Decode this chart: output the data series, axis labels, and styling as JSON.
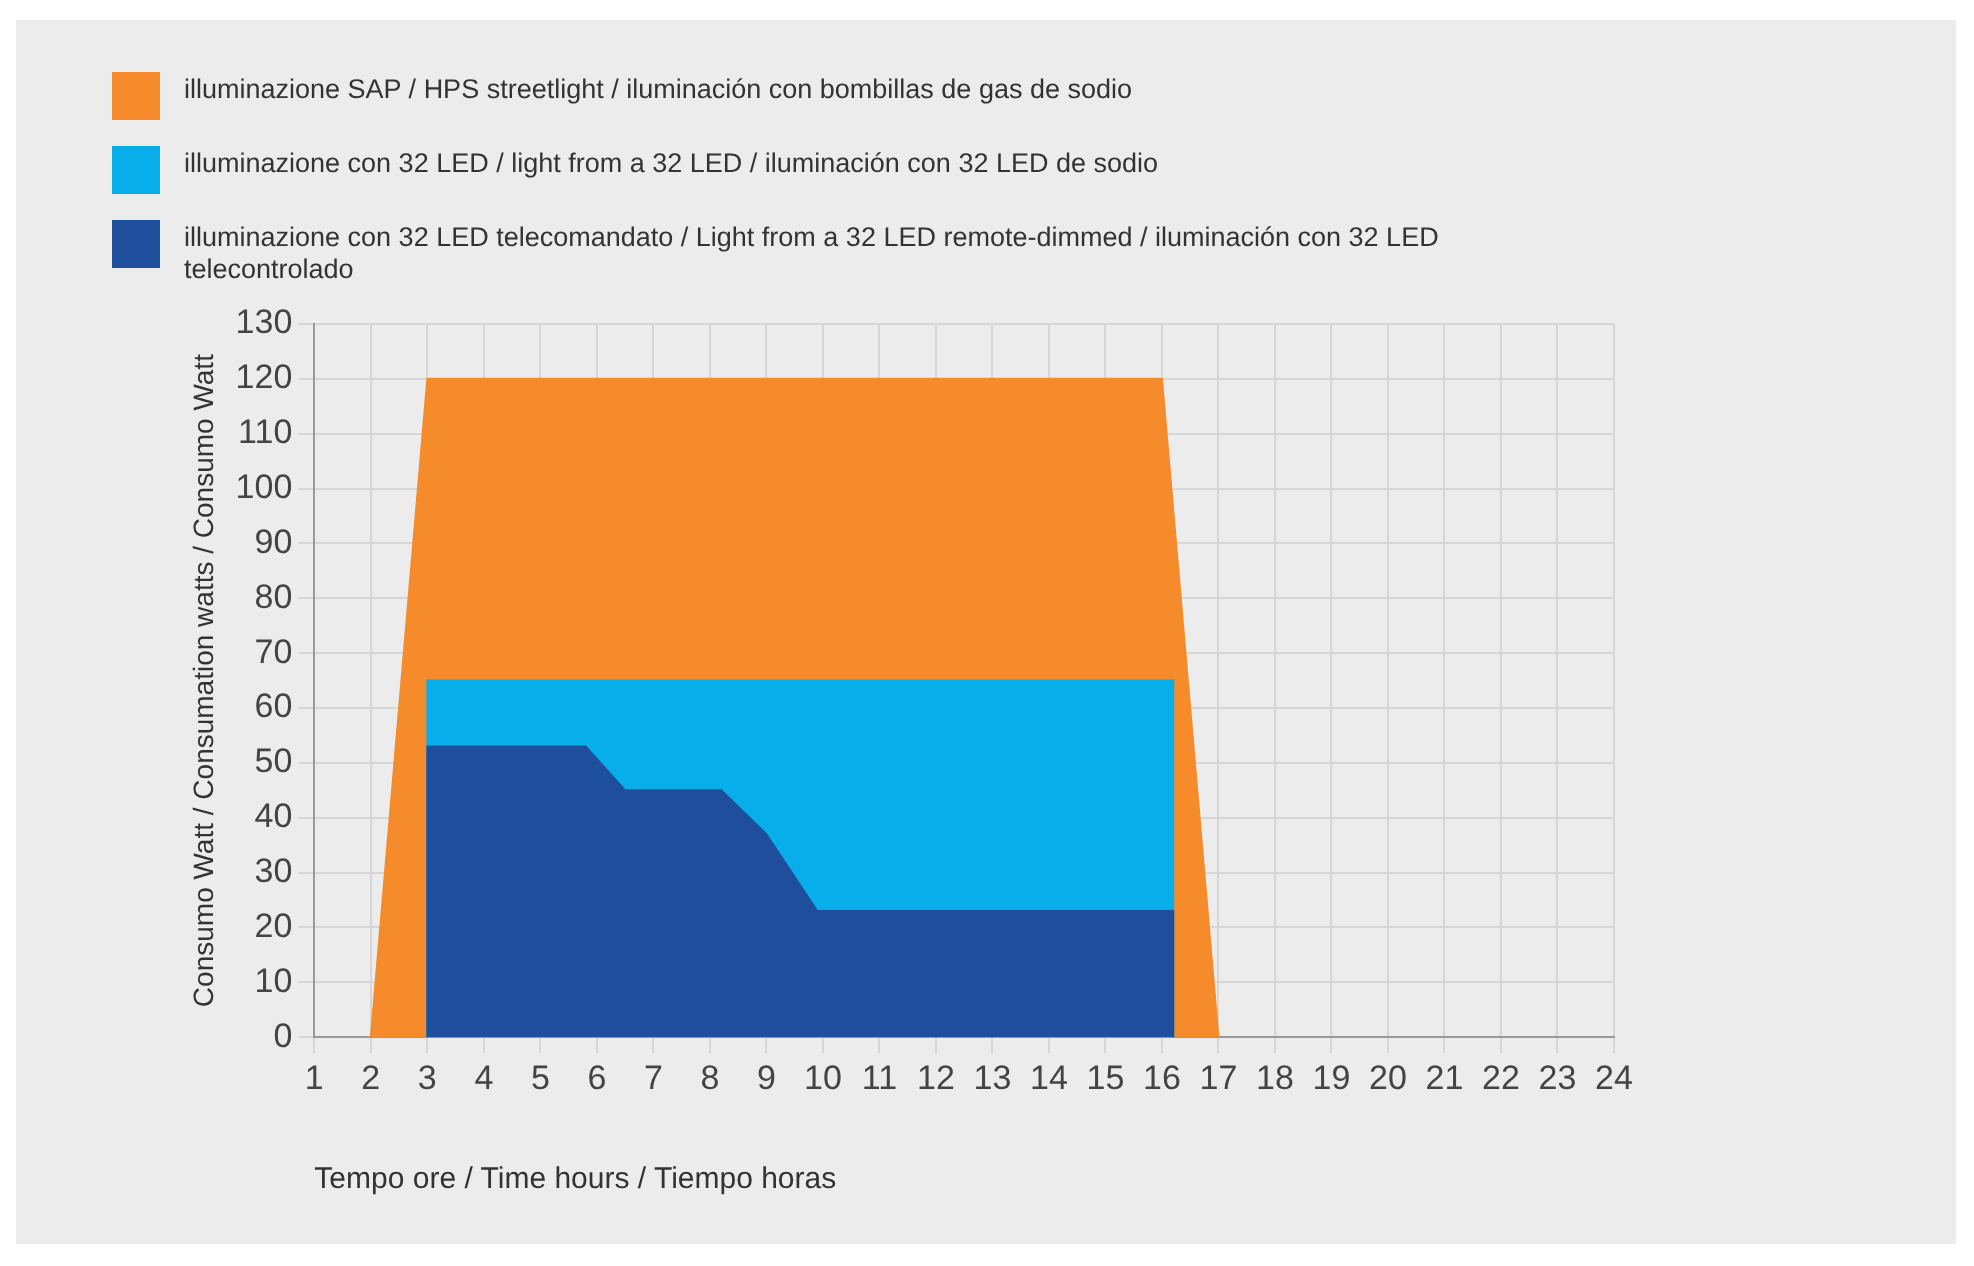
{
  "chart_data": {
    "type": "area",
    "xlabel": "Tempo ore / Time hours / Tiempo horas",
    "ylabel": "Consumo Watt / Consumation watts / Consumo Watt",
    "series": [
      {
        "name": "illuminazione SAP / HPS streetlight / iluminación con bombillas de gas de sodio",
        "color": "#f68b2c",
        "x": [
          2,
          3,
          16,
          17
        ],
        "values": [
          0,
          120,
          120,
          0
        ]
      },
      {
        "name": "illuminazione con 32 LED / light from a 32 LED / iluminación con 32 LED de sodio",
        "color": "#08aeea",
        "x": [
          3,
          3,
          16.2,
          16.2
        ],
        "values": [
          0,
          65,
          65,
          0
        ]
      },
      {
        "name": "illuminazione con 32 LED telecomandato / Light from a 32 LED remote-dimmed / iluminación con 32 LED telecontrolado",
        "color": "#1f4f9c",
        "x": [
          3,
          3,
          5.8,
          6.5,
          8.2,
          9,
          9.9,
          16.2,
          16.2
        ],
        "values": [
          0,
          53,
          53,
          45,
          45,
          37,
          23,
          23,
          0
        ]
      }
    ],
    "xlim": [
      1,
      24
    ],
    "xticks": [
      1,
      2,
      3,
      4,
      5,
      6,
      7,
      8,
      9,
      10,
      11,
      12,
      13,
      14,
      15,
      16,
      17,
      18,
      19,
      20,
      21,
      22,
      23,
      24
    ],
    "ylim": [
      0,
      130
    ],
    "yticks": [
      0,
      10,
      20,
      30,
      40,
      50,
      60,
      70,
      80,
      90,
      100,
      110,
      120,
      130
    ],
    "grid": true,
    "legend": "top left"
  }
}
